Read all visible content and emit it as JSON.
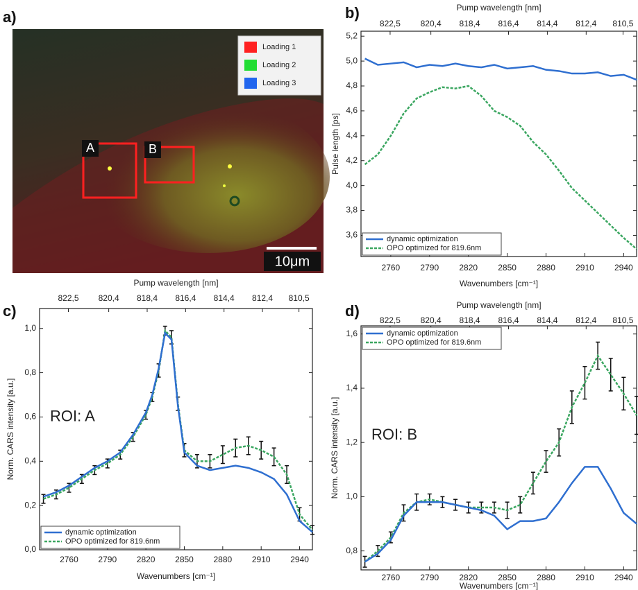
{
  "image_panel": {
    "label": "a)",
    "legend": [
      {
        "name": "Loading 1",
        "color": "#ff2020"
      },
      {
        "name": "Loading 2",
        "color": "#22dd33"
      },
      {
        "name": "Loading 3",
        "color": "#2266ee"
      }
    ],
    "rois": [
      "A",
      "B"
    ],
    "scale_bar": "10μm"
  },
  "chart_data": [
    {
      "type": "line",
      "label": "b)",
      "x_label": "Wavenumbers [cm⁻¹]",
      "x2_label": "Pump wavelength [nm]",
      "y_label": "Pulse length [ps]",
      "legend": "lower left",
      "x": [
        2740,
        2750,
        2760,
        2770,
        2780,
        2790,
        2800,
        2810,
        2820,
        2830,
        2840,
        2850,
        2860,
        2870,
        2880,
        2890,
        2900,
        2910,
        2920,
        2930,
        2940,
        2950
      ],
      "xlim": [
        2737,
        2950
      ],
      "xticks": [
        2760,
        2790,
        2820,
        2850,
        2880,
        2910,
        2940
      ],
      "x2lim": [
        824.0,
        809.8
      ],
      "x2ticks": [
        {
          "value": 822.5,
          "label": "822,5"
        },
        {
          "value": 820.4,
          "label": "820,4"
        },
        {
          "value": 818.4,
          "label": "818,4"
        },
        {
          "value": 816.4,
          "label": "816,4"
        },
        {
          "value": 814.4,
          "label": "814,4"
        },
        {
          "value": 812.4,
          "label": "812,4"
        },
        {
          "value": 810.5,
          "label": "810,5"
        }
      ],
      "ylim": [
        3.43,
        5.24
      ],
      "yticks": [
        {
          "value": 3.6,
          "label": "3,6"
        },
        {
          "value": 3.8,
          "label": "3,8"
        },
        {
          "value": 4,
          "label": "4,0"
        },
        {
          "value": 4.2,
          "label": "4,2"
        },
        {
          "value": 4.4,
          "label": "4,4"
        },
        {
          "value": 4.6,
          "label": "4,6"
        },
        {
          "value": 4.8,
          "label": "4,8"
        },
        {
          "value": 5,
          "label": "5,0"
        },
        {
          "value": 5.2,
          "label": "5,2"
        }
      ],
      "series": [
        {
          "name": "dynamic optimization",
          "color": "#2f6fd0",
          "style": "solid",
          "values": [
            5.02,
            4.97,
            4.98,
            4.99,
            4.95,
            4.97,
            4.96,
            4.98,
            4.96,
            4.95,
            4.97,
            4.94,
            4.95,
            4.96,
            4.93,
            4.92,
            4.9,
            4.9,
            4.91,
            4.88,
            4.89,
            4.85
          ]
        },
        {
          "name": "OPO optimized for 819.6nm",
          "color": "#3aa660",
          "style": "dashed",
          "values": [
            4.17,
            4.25,
            4.4,
            4.58,
            4.7,
            4.75,
            4.79,
            4.78,
            4.8,
            4.72,
            4.6,
            4.55,
            4.48,
            4.35,
            4.25,
            4.12,
            3.98,
            3.88,
            3.78,
            3.68,
            3.58,
            3.49
          ]
        }
      ]
    },
    {
      "type": "line",
      "label": "c)",
      "annotation": "ROI: A",
      "x_label": "Wavenumbers [cm⁻¹]",
      "x2_label": "Pump wavelength [nm]",
      "y_label": "Norm. CARS intensity [a.u.]",
      "legend": "lower left",
      "x": [
        2740,
        2750,
        2760,
        2770,
        2780,
        2790,
        2800,
        2810,
        2820,
        2825,
        2830,
        2835,
        2840,
        2845,
        2850,
        2860,
        2870,
        2880,
        2890,
        2900,
        2910,
        2920,
        2930,
        2940,
        2950
      ],
      "xlim": [
        2737,
        2950
      ],
      "xticks": [
        2760,
        2790,
        2820,
        2850,
        2880,
        2910,
        2940
      ],
      "x2lim": [
        824.0,
        809.8
      ],
      "x2ticks": [
        {
          "value": 822.5,
          "label": "822,5"
        },
        {
          "value": 820.4,
          "label": "820,4"
        },
        {
          "value": 818.4,
          "label": "818,4"
        },
        {
          "value": 816.4,
          "label": "816,4"
        },
        {
          "value": 814.4,
          "label": "814,4"
        },
        {
          "value": 812.4,
          "label": "812,4"
        },
        {
          "value": 810.5,
          "label": "810,5"
        }
      ],
      "ylim": [
        0,
        1.09
      ],
      "yticks": [
        {
          "value": 0,
          "label": "0,0"
        },
        {
          "value": 0.2,
          "label": "0,2"
        },
        {
          "value": 0.4,
          "label": "0,4"
        },
        {
          "value": 0.6,
          "label": "0,6"
        },
        {
          "value": 0.8,
          "label": "0,8"
        },
        {
          "value": 1,
          "label": "1,0"
        }
      ],
      "series": [
        {
          "name": "dynamic optimization",
          "color": "#2f6fd0",
          "style": "solid",
          "values": [
            0.24,
            0.26,
            0.29,
            0.33,
            0.37,
            0.4,
            0.44,
            0.52,
            0.62,
            0.7,
            0.82,
            0.98,
            0.95,
            0.65,
            0.44,
            0.38,
            0.36,
            0.37,
            0.38,
            0.37,
            0.35,
            0.32,
            0.25,
            0.13,
            0.08
          ]
        },
        {
          "name": "OPO optimized for 819.6nm",
          "color": "#3aa660",
          "style": "dashed",
          "values": [
            0.23,
            0.25,
            0.28,
            0.32,
            0.36,
            0.39,
            0.43,
            0.51,
            0.61,
            0.69,
            0.81,
            0.99,
            0.96,
            0.66,
            0.45,
            0.4,
            0.4,
            0.43,
            0.46,
            0.47,
            0.45,
            0.42,
            0.34,
            0.16,
            0.09
          ],
          "errors": [
            0.02,
            0.02,
            0.02,
            0.02,
            0.02,
            0.02,
            0.02,
            0.02,
            0.02,
            0.02,
            0.03,
            0.02,
            0.03,
            0.03,
            0.03,
            0.03,
            0.03,
            0.04,
            0.04,
            0.04,
            0.04,
            0.04,
            0.04,
            0.03,
            0.02
          ]
        }
      ]
    },
    {
      "type": "line",
      "label": "d)",
      "annotation": "ROI: B",
      "x_label": "Wavenumbers [cm⁻¹]",
      "x2_label": "Pump wavelength [nm]",
      "y_label": "Norm. CARS intensity [a.u.]",
      "legend": "upper left",
      "x": [
        2740,
        2750,
        2760,
        2770,
        2780,
        2790,
        2800,
        2810,
        2820,
        2830,
        2840,
        2850,
        2860,
        2870,
        2880,
        2890,
        2900,
        2910,
        2920,
        2930,
        2940,
        2950
      ],
      "xlim": [
        2737,
        2950
      ],
      "xticks": [
        2760,
        2790,
        2820,
        2850,
        2880,
        2910,
        2940
      ],
      "x2lim": [
        824.0,
        809.8
      ],
      "x2ticks": [
        {
          "value": 822.5,
          "label": "822,5"
        },
        {
          "value": 820.4,
          "label": "820,4"
        },
        {
          "value": 818.4,
          "label": "818,4"
        },
        {
          "value": 816.4,
          "label": "816,4"
        },
        {
          "value": 814.4,
          "label": "814,4"
        },
        {
          "value": 812.4,
          "label": "812,4"
        },
        {
          "value": 810.5,
          "label": "810,5"
        }
      ],
      "ylim": [
        0.73,
        1.63
      ],
      "yticks": [
        {
          "value": 0.8,
          "label": "0,8"
        },
        {
          "value": 1,
          "label": "1,0"
        },
        {
          "value": 1.2,
          "label": "1,2"
        },
        {
          "value": 1.4,
          "label": "1,4"
        },
        {
          "value": 1.6,
          "label": "1,6"
        }
      ],
      "series": [
        {
          "name": "dynamic optimization",
          "color": "#2f6fd0",
          "style": "solid",
          "values": [
            0.76,
            0.79,
            0.84,
            0.93,
            0.98,
            0.98,
            0.98,
            0.97,
            0.96,
            0.95,
            0.93,
            0.88,
            0.91,
            0.91,
            0.92,
            0.98,
            1.05,
            1.11,
            1.11,
            1.03,
            0.94,
            0.9
          ]
        },
        {
          "name": "OPO optimized for 819.6nm",
          "color": "#3aa660",
          "style": "dashed",
          "values": [
            0.76,
            0.8,
            0.85,
            0.94,
            0.98,
            0.99,
            0.98,
            0.97,
            0.96,
            0.96,
            0.96,
            0.95,
            0.97,
            1.05,
            1.13,
            1.2,
            1.33,
            1.42,
            1.52,
            1.45,
            1.38,
            1.3
          ],
          "errors": [
            0.02,
            0.02,
            0.02,
            0.03,
            0.03,
            0.02,
            0.02,
            0.02,
            0.02,
            0.02,
            0.02,
            0.03,
            0.03,
            0.04,
            0.04,
            0.05,
            0.06,
            0.06,
            0.05,
            0.06,
            0.06,
            0.07
          ]
        }
      ]
    }
  ]
}
